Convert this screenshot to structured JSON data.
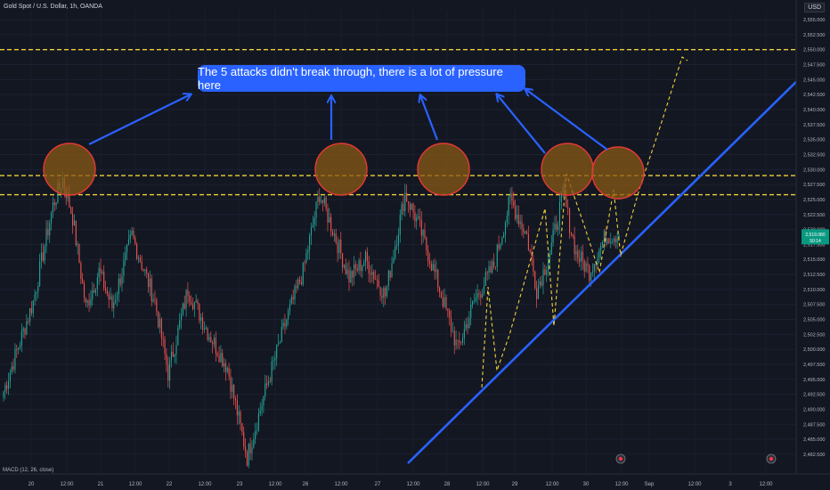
{
  "header": {
    "symbol_title": "Gold Spot / U.S. Dollar, 1h, OANDA",
    "currency": "USD"
  },
  "indicator": {
    "label": "MACD (12, 26, close)"
  },
  "annotation": {
    "callout": "The 5 attacks didn't break through, there is a lot of pressure here"
  },
  "colors": {
    "up": "#26a69a",
    "down": "#ef5350",
    "trend": "#2962ff",
    "dashed": "#f0d03a",
    "circle_fill": "#8a5a14",
    "circle_stroke": "#e53935",
    "badge": "#089981"
  },
  "chart_data": {
    "type": "candlestick",
    "x_ticks": [
      "20",
      "12:00",
      "21",
      "12:00",
      "22",
      "12:00",
      "23",
      "12:00",
      "26",
      "12:00",
      "27",
      "12:00",
      "28",
      "12:00",
      "29",
      "12:00",
      "30",
      "12:00",
      "Sep",
      "12:00",
      "3",
      "12:00"
    ],
    "y_ticks": [
      "2,482.500",
      "2,485.000",
      "2,487.500",
      "2,490.000",
      "2,492.500",
      "2,495.000",
      "2,497.500",
      "2,500.000",
      "2,502.500",
      "2,505.000",
      "2,507.500",
      "2,510.000",
      "2,512.500",
      "2,515.000",
      "2,517.500",
      "2,520.000",
      "2,522.500",
      "2,525.000",
      "2,527.500",
      "2,530.000",
      "2,532.500",
      "2,535.000",
      "2,537.500",
      "2,540.000",
      "2,542.500",
      "2,545.000",
      "2,547.500",
      "2,550.000",
      "2,552.500",
      "2,555.000"
    ],
    "ylim": [
      2481,
      2556.5
    ],
    "horizontal_levels": [
      {
        "price": 2550.0,
        "label": "2,550.040"
      },
      {
        "price": 2529.0,
        "label": "2,529.000"
      },
      {
        "price": 2525.8,
        "label": "2,525.780"
      }
    ],
    "price_badge": {
      "price": 2519.0,
      "label": "2,519.080",
      "countdown": "50:14"
    },
    "series": [
      {
        "name": "",
        "anchors": [
          [
            0,
            2493
          ],
          [
            18,
            2508
          ],
          [
            30,
            2524
          ],
          [
            36,
            2528.5
          ],
          [
            42,
            2522
          ],
          [
            50,
            2507
          ],
          [
            58,
            2513
          ],
          [
            66,
            2507
          ],
          [
            78,
            2519
          ],
          [
            92,
            2508
          ],
          [
            100,
            2496
          ],
          [
            112,
            2510
          ],
          [
            124,
            2503
          ],
          [
            136,
            2497
          ],
          [
            148,
            2482
          ],
          [
            160,
            2494
          ],
          [
            172,
            2505
          ],
          [
            182,
            2513
          ],
          [
            192,
            2526
          ],
          [
            200,
            2520
          ],
          [
            210,
            2512
          ],
          [
            220,
            2515
          ],
          [
            232,
            2509
          ],
          [
            244,
            2526
          ],
          [
            252,
            2521
          ],
          [
            264,
            2511
          ],
          [
            276,
            2500
          ],
          [
            286,
            2508
          ],
          [
            298,
            2514
          ],
          [
            308,
            2525
          ],
          [
            318,
            2519
          ],
          [
            324,
            2510
          ],
          [
            332,
            2516
          ],
          [
            340,
            2526
          ],
          [
            348,
            2516
          ],
          [
            356,
            2513
          ],
          [
            366,
            2519
          ],
          [
            374,
            2519.1
          ]
        ]
      }
    ]
  }
}
